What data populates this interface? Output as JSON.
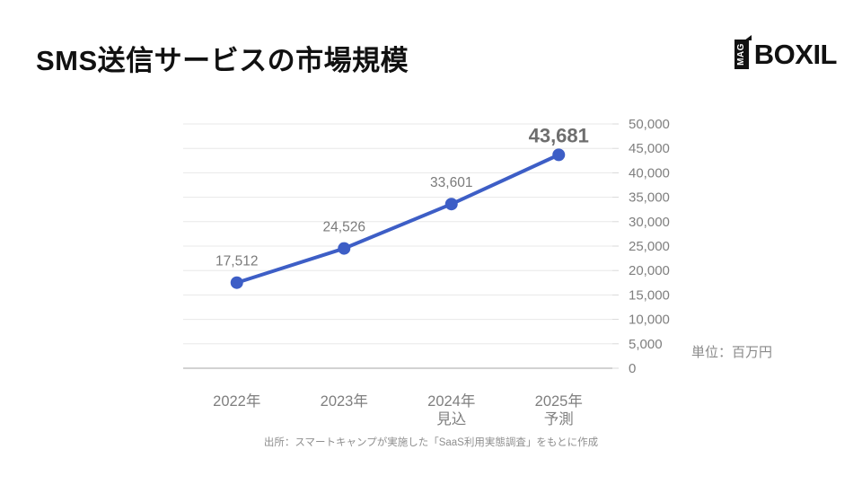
{
  "header": {
    "title": "SMS送信サービスの市場規模",
    "logo": {
      "mag": "MAG",
      "brand": "BOXIL"
    }
  },
  "chart_data": {
    "type": "line",
    "title": "SMS送信サービスの市場規模",
    "unit_label": "単位：百万円",
    "categories": [
      "2022年",
      "2023年",
      "2024年 見込",
      "2025年 予測"
    ],
    "category_lines": [
      [
        "2022年"
      ],
      [
        "2023年"
      ],
      [
        "2024年",
        "見込"
      ],
      [
        "2025年",
        "予測"
      ]
    ],
    "values": [
      17512,
      24526,
      33601,
      43681
    ],
    "data_labels": [
      "17,512",
      "24,526",
      "33,601",
      "43,681"
    ],
    "emphasized_index": 3,
    "ylim": [
      0,
      50000
    ],
    "ytick_step": 5000,
    "yticks": [
      "0",
      "5,000",
      "10,000",
      "15,000",
      "20,000",
      "25,000",
      "30,000",
      "35,000",
      "40,000",
      "45,000",
      "50,000"
    ],
    "y_axis_position": "right",
    "grid": true,
    "legend": "none",
    "line_color": "#3d5ec6",
    "point_color": "#3d5ec6",
    "label_color": "#7a7a7a",
    "emphasized_color": "#6e6e6e",
    "axis_color": "#7f7f7f",
    "grid_color": "#e8e8e8",
    "axis_line_color": "#c4c4c4",
    "tick_color": "#d9d9d9"
  },
  "footer": {
    "source": "出所：スマートキャンプが実施した「SaaS利用実態調査」をもとに作成"
  }
}
